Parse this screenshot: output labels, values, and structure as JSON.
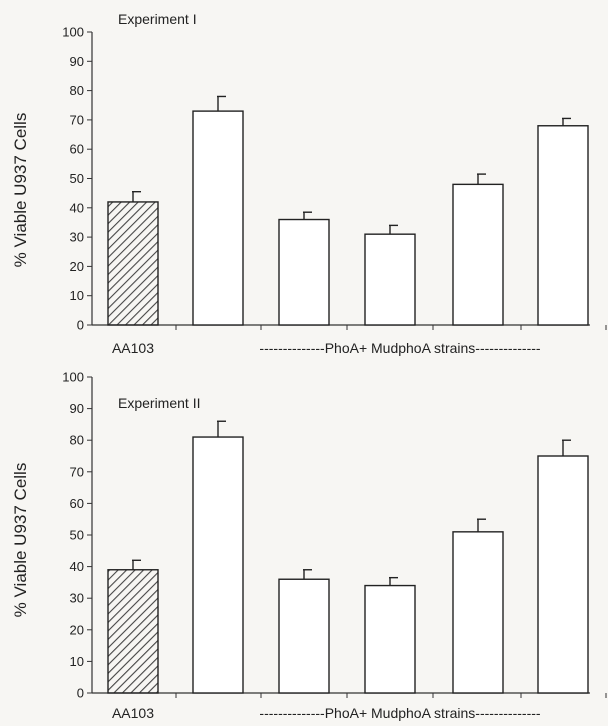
{
  "colors": {
    "background": "#f7f6f3",
    "axis": "#333333",
    "bar_fill": "#ffffff",
    "bar_stroke": "#222222",
    "hatch": "#444444"
  },
  "chart_data": [
    {
      "type": "bar",
      "title": "Experiment I",
      "ylabel": "% Viable U937 Cells",
      "ylim": [
        0,
        100
      ],
      "yticks": [
        0,
        10,
        20,
        30,
        40,
        50,
        60,
        70,
        80,
        90,
        100
      ],
      "categories": [
        "AA103",
        "",
        "",
        "",
        "",
        ""
      ],
      "group_label": "--------------PhoA+ MudphoA strains--------------",
      "values": [
        42,
        73,
        36,
        31,
        48,
        68
      ],
      "errors": [
        3.5,
        5,
        2.5,
        3,
        3.5,
        2.5
      ],
      "hatched": [
        true,
        false,
        false,
        false,
        false,
        false
      ],
      "grid": false
    },
    {
      "type": "bar",
      "title": "Experiment II",
      "ylabel": "% Viable U937 Cells",
      "ylim": [
        0,
        100
      ],
      "yticks": [
        0,
        10,
        20,
        30,
        40,
        50,
        60,
        70,
        80,
        90,
        100
      ],
      "categories": [
        "AA103",
        "",
        "",
        "",
        "",
        ""
      ],
      "group_label": "--------------PhoA+ MudphoA strains--------------",
      "values": [
        39,
        81,
        36,
        34,
        51,
        75
      ],
      "errors": [
        3,
        5,
        3,
        2.5,
        4,
        5
      ],
      "hatched": [
        true,
        false,
        false,
        false,
        false,
        false
      ],
      "grid": false
    }
  ]
}
